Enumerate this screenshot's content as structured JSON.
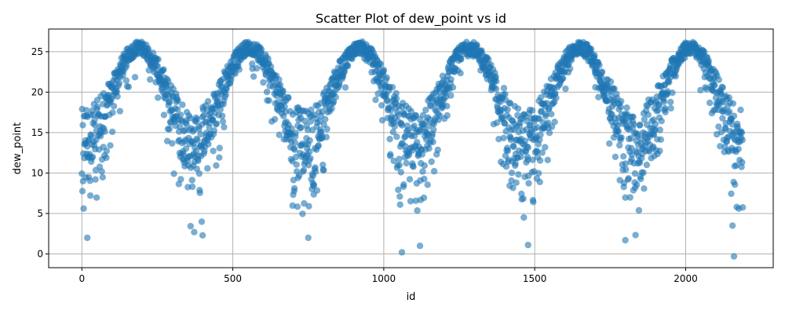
{
  "chart_data": {
    "type": "scatter",
    "title": "Scatter Plot of dew_point vs id",
    "xlabel": "id",
    "ylabel": "dew_point",
    "xlim": [
      -110,
      2290
    ],
    "ylim": [
      -1.7,
      27.8
    ],
    "xticks": [
      0,
      500,
      1000,
      1500,
      2000
    ],
    "yticks": [
      0,
      5,
      10,
      15,
      20,
      25
    ],
    "grid": true,
    "point_color": "#1f77b4",
    "point_alpha": 0.6,
    "n_points": 2190,
    "pattern": {
      "description_values": "seasonal cycle, period about 365 ids",
      "peak_value": 25.5,
      "trough_value": 14.5,
      "peaks_at_id": [
        190,
        555,
        920,
        1285,
        1650,
        2015
      ]
    },
    "outliers": [
      {
        "x": 18,
        "y": 2.0
      },
      {
        "x": 1060,
        "y": 0.2
      },
      {
        "x": 2160,
        "y": -0.3
      },
      {
        "x": 2155,
        "y": 3.5
      },
      {
        "x": 1800,
        "y": 1.7
      },
      {
        "x": 1120,
        "y": 1.0
      },
      {
        "x": 1478,
        "y": 1.1
      },
      {
        "x": 750,
        "y": 2.0
      },
      {
        "x": 400,
        "y": 2.3
      },
      {
        "x": 372,
        "y": 2.7
      }
    ]
  }
}
